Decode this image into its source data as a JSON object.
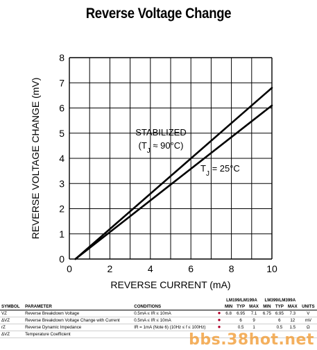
{
  "chart_data": {
    "type": "line",
    "title": "Reverse Voltage Change",
    "xlabel": "REVERSE CURRENT (mA)",
    "ylabel": "REVERSE VOLTAGE CHANGE (mV)",
    "xlim": [
      0,
      10
    ],
    "ylim": [
      0,
      8
    ],
    "xticks": [
      0,
      2,
      4,
      6,
      8,
      10
    ],
    "yticks": [
      0,
      1,
      2,
      3,
      4,
      5,
      6,
      7,
      8
    ],
    "grid": true,
    "series": [
      {
        "name": "STABILIZED (TJ ≈ 90°C)",
        "x": [
          0.3,
          10
        ],
        "y": [
          0,
          6.8
        ]
      },
      {
        "name": "TJ = 25°C",
        "x": [
          0.3,
          10
        ],
        "y": [
          0,
          6.1
        ]
      }
    ],
    "annotations": [
      {
        "text": "STABILIZED"
      },
      {
        "text": "(T",
        "sub": "J",
        "rest": " ≈ 90°C)"
      },
      {
        "text": "T",
        "sub": "J",
        "rest": " = 25°C"
      }
    ]
  },
  "table": {
    "headers": {
      "symbol": "SYMBOL",
      "parameter": "PARAMETER",
      "conditions": "CONDITIONS",
      "group1": "LM199/LM199A",
      "group2": "LM399/LM399A",
      "min": "MIN",
      "typ": "TYP",
      "max": "MAX",
      "units": "UNITS"
    },
    "rows": [
      {
        "symbol": "VZ",
        "parameter": "Reverse Breakdown Voltage",
        "conditions": "0.5mA ≤ IR ≤ 10mA",
        "g1": [
          "6.8",
          "6.95",
          "7.1"
        ],
        "g2": [
          "6.75",
          "6.95",
          "7.3"
        ],
        "units": "V"
      },
      {
        "symbol": "ΔVZ",
        "parameter": "Reverse Breakdown Voltage Change with Current",
        "conditions": "0.5mA ≤ IR ≤ 10mA",
        "g1": [
          "",
          "6",
          "9"
        ],
        "g2": [
          "",
          "6",
          "12"
        ],
        "units": "mV"
      },
      {
        "symbol": "rZ",
        "parameter": "Reverse Dynamic Impedance",
        "conditions": "IR = 1mA (Note 6) (10Hz ≤ f ≤ 100Hz)",
        "g1": [
          "",
          "0.5",
          "1"
        ],
        "g2": [
          "",
          "0.5",
          "1.5"
        ],
        "units": "Ω"
      },
      {
        "symbol": "ΔVZ",
        "parameter": "Temperature Coefficient",
        "conditions": "",
        "g1": [
          "",
          "",
          ""
        ],
        "g2": [
          "",
          "",
          ""
        ],
        "units": ""
      }
    ]
  },
  "watermark": "bbs.38hot.net"
}
